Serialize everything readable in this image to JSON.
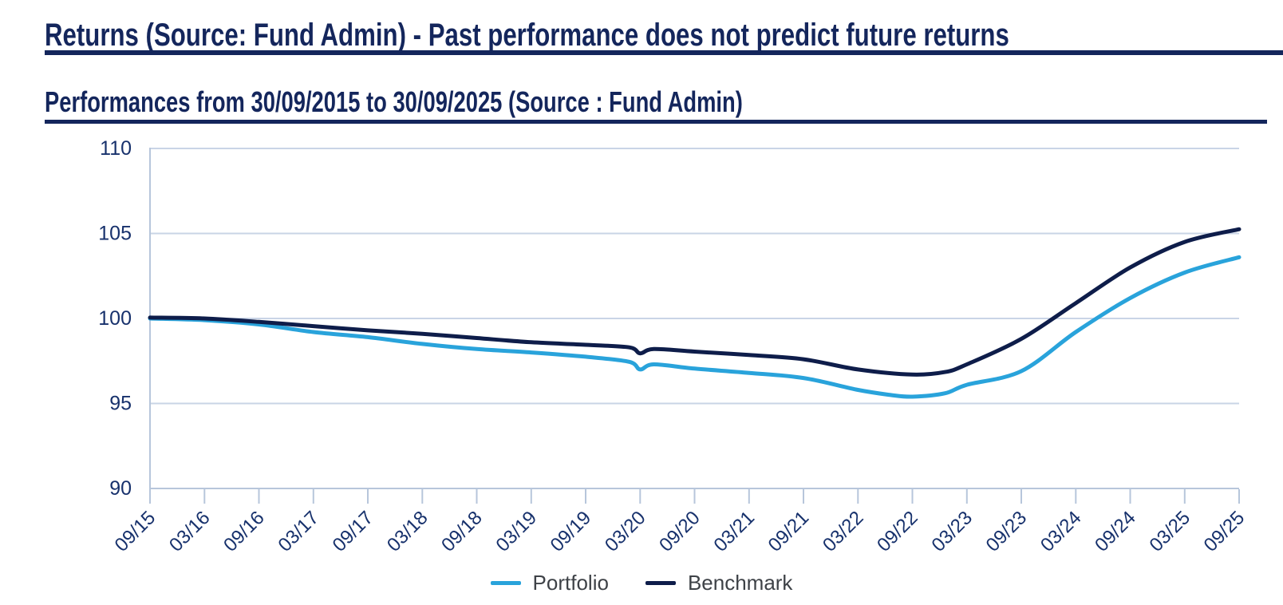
{
  "page": {
    "title": "Returns (Source: Fund Admin) - Past performance does not predict future returns",
    "subtitle": "Performances from 30/09/2015 to 30/09/2025 (Source : Fund Admin)"
  },
  "colors": {
    "heading_navy": "#14265c",
    "portfolio": "#29a3db",
    "benchmark": "#0e1d4a",
    "gridline": "#c9d4e6",
    "axis_line": "#b7c6db",
    "tick_label": "#17316c",
    "legend_text": "#3e4247"
  },
  "chart_data": {
    "type": "line",
    "title": "Performances from 30/09/2015 to 30/09/2025 (Source : Fund Admin)",
    "categories": [
      "09/15",
      "03/16",
      "09/16",
      "03/17",
      "09/17",
      "03/18",
      "09/18",
      "03/19",
      "09/19",
      "03/20",
      "09/20",
      "03/21",
      "09/21",
      "03/22",
      "09/22",
      "03/23",
      "09/23",
      "03/24",
      "09/24",
      "03/25",
      "09/25"
    ],
    "xlabel": "",
    "ylabel": "",
    "ylim": [
      90,
      110
    ],
    "yticks": [
      90,
      95,
      100,
      105,
      110
    ],
    "grid": "horizontal",
    "legend_position": "bottom",
    "base_value": 100,
    "series": [
      {
        "name": "Portfolio",
        "color": "#29a3db",
        "values": [
          100.0,
          99.9,
          99.65,
          99.2,
          98.9,
          98.5,
          98.2,
          98.0,
          97.75,
          97.1,
          97.05,
          96.8,
          96.5,
          95.8,
          95.4,
          96.1,
          96.9,
          99.2,
          101.2,
          102.7,
          103.6
        ],
        "points": [
          [
            0,
            100.0
          ],
          [
            1,
            99.9
          ],
          [
            2,
            99.65
          ],
          [
            3,
            99.2
          ],
          [
            4,
            98.9
          ],
          [
            5,
            98.5
          ],
          [
            6,
            98.2
          ],
          [
            7,
            98.0
          ],
          [
            8,
            97.75
          ],
          [
            8.8,
            97.45
          ],
          [
            9,
            97.0
          ],
          [
            9.25,
            97.3
          ],
          [
            10,
            97.05
          ],
          [
            11,
            96.8
          ],
          [
            12,
            96.5
          ],
          [
            13,
            95.8
          ],
          [
            13.6,
            95.5
          ],
          [
            14,
            95.4
          ],
          [
            14.6,
            95.6
          ],
          [
            15,
            96.1
          ],
          [
            16,
            96.9
          ],
          [
            17,
            99.2
          ],
          [
            18,
            101.2
          ],
          [
            19,
            102.7
          ],
          [
            20,
            103.6
          ]
        ]
      },
      {
        "name": "Benchmark",
        "color": "#0e1d4a",
        "values": [
          100.0,
          100.0,
          99.8,
          99.55,
          99.3,
          99.1,
          98.85,
          98.6,
          98.45,
          98.1,
          98.05,
          97.85,
          97.6,
          97.0,
          96.7,
          97.3,
          98.8,
          100.9,
          103.0,
          104.5,
          105.25
        ],
        "points": [
          [
            0,
            100.05
          ],
          [
            1,
            100.0
          ],
          [
            2,
            99.8
          ],
          [
            3,
            99.55
          ],
          [
            4,
            99.3
          ],
          [
            5,
            99.1
          ],
          [
            6,
            98.85
          ],
          [
            7,
            98.6
          ],
          [
            8,
            98.45
          ],
          [
            8.8,
            98.3
          ],
          [
            9,
            97.95
          ],
          [
            9.25,
            98.2
          ],
          [
            10,
            98.05
          ],
          [
            11,
            97.85
          ],
          [
            12,
            97.6
          ],
          [
            13,
            97.0
          ],
          [
            14,
            96.7
          ],
          [
            14.6,
            96.85
          ],
          [
            15,
            97.3
          ],
          [
            16,
            98.8
          ],
          [
            17,
            100.9
          ],
          [
            18,
            103.0
          ],
          [
            19,
            104.5
          ],
          [
            20,
            105.25
          ]
        ]
      }
    ]
  },
  "legend": {
    "items": [
      {
        "label": "Portfolio",
        "color": "#29a3db"
      },
      {
        "label": "Benchmark",
        "color": "#0e1d4a"
      }
    ]
  }
}
